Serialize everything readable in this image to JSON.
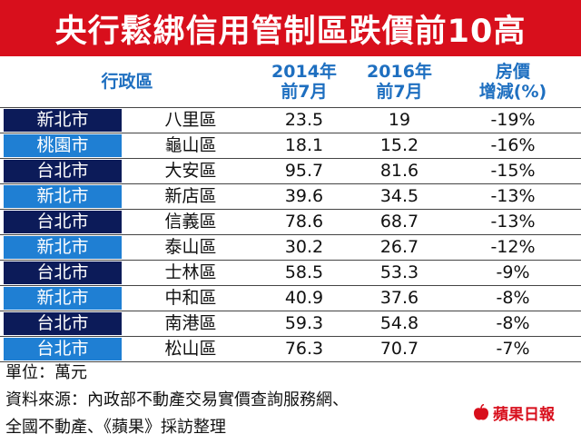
{
  "title": "央行鬆綁信用管制區跌價前10高",
  "header": {
    "district": "行政區",
    "col2014_line1": "2014年",
    "col2014_line2": "前7月",
    "col2016_line1": "2016年",
    "col2016_line2": "前7月",
    "change_line1": "房價",
    "change_line2": "增減(%)"
  },
  "colors": {
    "title_bg": "#d80f1c",
    "header_text": "#1e6fc0",
    "city_dark": "#0c1b59",
    "city_light": "#1f7fd3"
  },
  "rows": [
    {
      "city": "新北市",
      "district": "八里區",
      "v2014": "23.5",
      "v2016": "19",
      "change": "-19%"
    },
    {
      "city": "桃園市",
      "district": "龜山區",
      "v2014": "18.1",
      "v2016": "15.2",
      "change": "-16%"
    },
    {
      "city": "台北市",
      "district": "大安區",
      "v2014": "95.7",
      "v2016": "81.6",
      "change": "-15%"
    },
    {
      "city": "新北市",
      "district": "新店區",
      "v2014": "39.6",
      "v2016": "34.5",
      "change": "-13%"
    },
    {
      "city": "台北市",
      "district": "信義區",
      "v2014": "78.6",
      "v2016": "68.7",
      "change": "-13%"
    },
    {
      "city": "新北市",
      "district": "泰山區",
      "v2014": "30.2",
      "v2016": "26.7",
      "change": "-12%"
    },
    {
      "city": "台北市",
      "district": "士林區",
      "v2014": "58.5",
      "v2016": "53.3",
      "change": "-9%"
    },
    {
      "city": "新北市",
      "district": "中和區",
      "v2014": "40.9",
      "v2016": "37.6",
      "change": "-8%"
    },
    {
      "city": "台北市",
      "district": "南港區",
      "v2014": "59.3",
      "v2016": "54.8",
      "change": "-8%"
    },
    {
      "city": "台北市",
      "district": "松山區",
      "v2014": "76.3",
      "v2016": "70.7",
      "change": "-7%"
    }
  ],
  "footer": {
    "unit": "單位：萬元",
    "source_line1": "資料來源：內政部不動產交易實價查詢服務網、",
    "source_line2": "全國不動產、《蘋果》採訪整理"
  },
  "logo_text": "蘋果日報",
  "chart_data": {
    "type": "table",
    "title": "央行鬆綁信用管制區跌價前10高",
    "columns": [
      "行政區",
      "行政區",
      "2014年前7月",
      "2016年前7月",
      "房價增減(%)"
    ],
    "units": "萬元",
    "rows": [
      [
        "新北市",
        "八里區",
        23.5,
        19,
        -19
      ],
      [
        "桃園市",
        "龜山區",
        18.1,
        15.2,
        -16
      ],
      [
        "台北市",
        "大安區",
        95.7,
        81.6,
        -15
      ],
      [
        "新北市",
        "新店區",
        39.6,
        34.5,
        -13
      ],
      [
        "台北市",
        "信義區",
        78.6,
        68.7,
        -13
      ],
      [
        "新北市",
        "泰山區",
        30.2,
        26.7,
        -12
      ],
      [
        "台北市",
        "士林區",
        58.5,
        53.3,
        -9
      ],
      [
        "新北市",
        "中和區",
        40.9,
        37.6,
        -8
      ],
      [
        "台北市",
        "南港區",
        59.3,
        54.8,
        -8
      ],
      [
        "台北市",
        "松山區",
        76.3,
        70.7,
        -7
      ]
    ]
  }
}
